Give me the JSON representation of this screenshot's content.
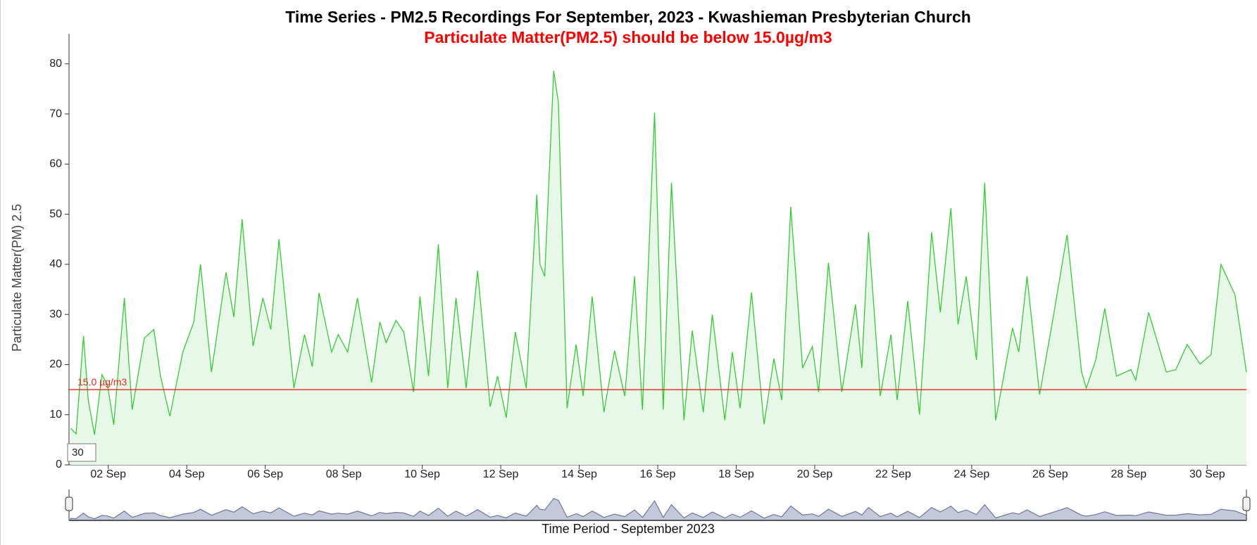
{
  "chart_data": {
    "type": "line",
    "title": "Time Series - PM2.5 Recordings For September, 2023 - Kwashieman Presbyterian Church",
    "subtitle": "Particulate Matter(PM2.5) should be below 15.0µg/m3",
    "xlabel": "Time Period - September 2023",
    "ylabel": "Particulate Matter(PM) 2.5",
    "color": "#33cc33",
    "area_color": "#e8f8e8",
    "x": [
      1.04,
      1.18,
      1.37,
      1.49,
      1.65,
      1.84,
      1.98,
      2.14,
      2.41,
      2.61,
      2.92,
      3.16,
      3.33,
      3.57,
      3.9,
      4.18,
      4.35,
      4.63,
      5.0,
      5.2,
      5.41,
      5.69,
      5.94,
      6.14,
      6.35,
      6.73,
      7.0,
      7.2,
      7.37,
      7.69,
      7.86,
      8.1,
      8.35,
      8.71,
      8.92,
      9.08,
      9.33,
      9.53,
      9.78,
      9.94,
      10.16,
      10.41,
      10.65,
      10.86,
      11.12,
      11.41,
      11.73,
      11.92,
      12.14,
      12.37,
      12.65,
      12.92,
      13.0,
      13.12,
      13.24,
      13.35,
      13.47,
      13.69,
      13.92,
      14.1,
      14.33,
      14.63,
      14.9,
      15.16,
      15.41,
      15.61,
      15.92,
      16.14,
      16.35,
      16.67,
      16.88,
      17.16,
      17.39,
      17.71,
      17.9,
      18.1,
      18.39,
      18.71,
      18.96,
      19.16,
      19.39,
      19.69,
      19.94,
      20.1,
      20.35,
      20.69,
      21.04,
      21.2,
      21.37,
      21.67,
      21.94,
      22.1,
      22.37,
      22.67,
      22.98,
      23.2,
      23.47,
      23.65,
      23.86,
      24.12,
      24.33,
      24.61,
      25.04,
      25.2,
      25.41,
      25.73,
      26.08,
      26.43,
      26.8,
      26.92,
      27.16,
      27.39,
      27.69,
      28.06,
      28.18,
      28.51,
      28.96,
      29.2,
      29.49,
      29.82,
      30.1,
      30.35,
      30.71,
      31.0
    ],
    "values": [
      7.3,
      6.2,
      25.7,
      12.9,
      6,
      18,
      16,
      8,
      33.3,
      11,
      25.3,
      27,
      17.7,
      9.7,
      22.5,
      28.5,
      40,
      18.5,
      38.4,
      29.5,
      49,
      23.7,
      33.3,
      27,
      45,
      15.3,
      26,
      19.6,
      34.3,
      22.5,
      26,
      22.5,
      33.3,
      16.4,
      28.5,
      24.4,
      28.8,
      26.5,
      14.5,
      33.6,
      17.7,
      44,
      15.3,
      33.3,
      15.3,
      38.7,
      11.6,
      17.7,
      9.4,
      26.5,
      15.3,
      53.9,
      40,
      37.6,
      59,
      78.6,
      72.2,
      11.3,
      24,
      13.7,
      33.6,
      10.5,
      22.8,
      13.7,
      37.6,
      11,
      70.3,
      11,
      56.3,
      8.9,
      26.8,
      10.5,
      30,
      8.9,
      22.5,
      11.3,
      34.4,
      8.1,
      21.2,
      12.9,
      51.5,
      19.3,
      23.6,
      14.5,
      40.3,
      14.5,
      32,
      19.3,
      46.4,
      13.7,
      26,
      12.9,
      32.7,
      10,
      46.4,
      30.4,
      51.2,
      28,
      37.6,
      20.9,
      56.3,
      8.9,
      27.3,
      22.5,
      37.6,
      14,
      29.6,
      45.9,
      18.5,
      15.3,
      20.9,
      31.2,
      17.7,
      19,
      16.9,
      30.4,
      18.5,
      19,
      24,
      20.1,
      22,
      40,
      33.9,
      18.5
    ],
    "xlim": [
      1,
      31
    ],
    "ylim": [
      0,
      86
    ],
    "xticks": [
      {
        "value": 2,
        "label": "02 Sep"
      },
      {
        "value": 4,
        "label": "04 Sep"
      },
      {
        "value": 6,
        "label": "06 Sep"
      },
      {
        "value": 8,
        "label": "08 Sep"
      },
      {
        "value": 10,
        "label": "10 Sep"
      },
      {
        "value": 12,
        "label": "12 Sep"
      },
      {
        "value": 14,
        "label": "14 Sep"
      },
      {
        "value": 16,
        "label": "16 Sep"
      },
      {
        "value": 18,
        "label": "18 Sep"
      },
      {
        "value": 20,
        "label": "20 Sep"
      },
      {
        "value": 22,
        "label": "22 Sep"
      },
      {
        "value": 24,
        "label": "24 Sep"
      },
      {
        "value": 26,
        "label": "26 Sep"
      },
      {
        "value": 28,
        "label": "28 Sep"
      },
      {
        "value": 30,
        "label": "30 Sep"
      }
    ],
    "yticks": [
      0,
      10,
      20,
      30,
      40,
      50,
      60,
      70,
      80
    ],
    "threshold": {
      "value": 15,
      "label": "15.0 µg/m3",
      "color": "#e8261c"
    },
    "range_input": 30
  }
}
